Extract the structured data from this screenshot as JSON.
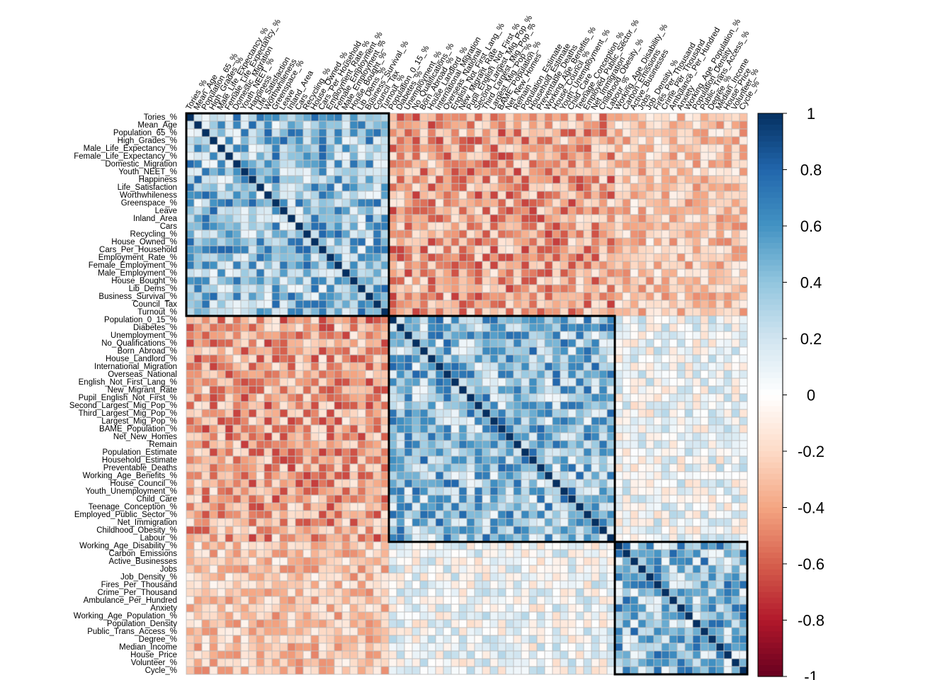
{
  "chart_data": {
    "type": "heatmap",
    "variables": [
      "Tories_%",
      "Mean_Age",
      "Population_65_%",
      "High_Grades_%",
      "Male_Life_Expectancy_%",
      "Female_Life_Expectancy_%",
      "Domestic_Migration",
      "Youth_NEET_%",
      "Happiness",
      "Life_Satisfaction",
      "Worthwhileness",
      "Greenspace_%",
      "Leave",
      "Inland_Area",
      "Cars",
      "Recycling_%",
      "House_Owned_%",
      "Cars_Per_Household",
      "Employment_Rate_%",
      "Female_Employment_%",
      "Male_Employment_%",
      "House_Bought_%",
      "Lib_Dems_%",
      "Business_Survival_%",
      "Council_Tax",
      "Turnout_%",
      "Population_0_15_%",
      "Diabetes_%",
      "Unemployment_%",
      "No_Qualifications_%",
      "Born_Abroad_%",
      "House_Landlord_%",
      "International_Migration",
      "Overseas_National",
      "English_Not_First_Lang_%",
      "New_Migrant_Rate",
      "Pupil_English_Not_First_%",
      "Second_Largest_Mig_Pop_%",
      "Third_Largest_Mig_Pop_%",
      "Largest_Mig_Pop_%",
      "BAME_Population_%",
      "Net_New_Homes",
      "Remain",
      "Population_Estimate",
      "Household_Estimate",
      "Preventable_Deaths",
      "Working_Age_Benefits_%",
      "House_Council_%",
      "Youth_Unemployment_%",
      "Child_Care",
      "Teenage_Conception_%",
      "Employed_Public_Sector_%",
      "Net_Immigration",
      "Childhood_Obesity_%",
      "Labour_%",
      "Working_Age_Disability_%",
      "Carbon_Emissions",
      "Active_Businesses",
      "Jobs",
      "Job_Density_%",
      "Fires_Per_Thousand",
      "Crime_Per_Thousand",
      "Ambulance_Per_Hundred",
      "Anxiety",
      "Working_Age_Population_%",
      "Population_Density",
      "Public_Trans_Access_%",
      "Degree_%",
      "Median_Income",
      "House_Price",
      "Volunteer_%",
      "Cycle_%"
    ],
    "clusters": [
      [
        1,
        26
      ],
      [
        27,
        55
      ],
      [
        56,
        72
      ]
    ],
    "colorbar": {
      "ticks": [
        "1",
        "0.8",
        "0.6",
        "0.4",
        "0.2",
        "0",
        "-0.2",
        "-0.4",
        "-0.6",
        "-0.8",
        "-1"
      ]
    },
    "colors": {
      "negative": "#67001F",
      "zero": "#FFFFFF",
      "positive": "#053061",
      "grid": "#BEBEBE",
      "cluster_box": "#000000"
    },
    "xlim": [
      -1,
      1
    ],
    "note_values": "cell correlations approximated from visual pattern"
  }
}
